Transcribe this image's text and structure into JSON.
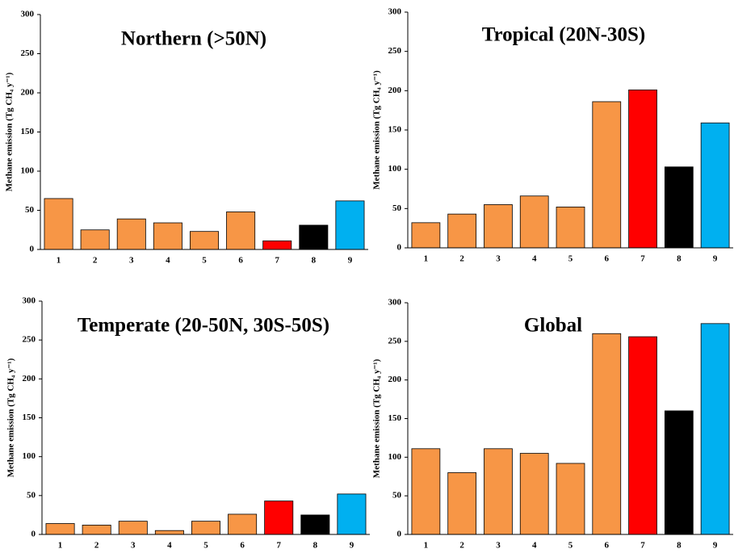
{
  "chart_data": [
    {
      "type": "bar",
      "title": "Northern (>50N)",
      "y_label": "Methane emission (Tg CH₄ y⁻¹)",
      "categories": [
        "1",
        "2",
        "3",
        "4",
        "5",
        "6",
        "7",
        "8",
        "9"
      ],
      "values": [
        65,
        25,
        39,
        34,
        23,
        48,
        11,
        31,
        62
      ],
      "colors": [
        "#f79646",
        "#f79646",
        "#f79646",
        "#f79646",
        "#f79646",
        "#f79646",
        "#ff0000",
        "#000000",
        "#00b0f0"
      ],
      "ylim": [
        0,
        300
      ],
      "yticks": [
        0,
        50,
        100,
        150,
        200,
        250,
        300
      ]
    },
    {
      "type": "bar",
      "title": "Tropical (20N-30S)",
      "y_label": "Methane emission (Tg CH₄ y⁻¹)",
      "categories": [
        "1",
        "2",
        "3",
        "4",
        "5",
        "6",
        "7",
        "8",
        "9"
      ],
      "values": [
        32,
        43,
        55,
        66,
        52,
        186,
        201,
        103,
        159
      ],
      "colors": [
        "#f79646",
        "#f79646",
        "#f79646",
        "#f79646",
        "#f79646",
        "#f79646",
        "#ff0000",
        "#000000",
        "#00b0f0"
      ],
      "ylim": [
        0,
        300
      ],
      "yticks": [
        0,
        50,
        100,
        150,
        200,
        250,
        300
      ]
    },
    {
      "type": "bar",
      "title": "Temperate (20-50N, 30S-50S)",
      "y_label": "Methane emission (Tg CH₄ y⁻¹)",
      "categories": [
        "1",
        "2",
        "3",
        "4",
        "5",
        "6",
        "7",
        "8",
        "9"
      ],
      "values": [
        14,
        12,
        17,
        5,
        17,
        26,
        43,
        25,
        52
      ],
      "colors": [
        "#f79646",
        "#f79646",
        "#f79646",
        "#f79646",
        "#f79646",
        "#f79646",
        "#ff0000",
        "#000000",
        "#00b0f0"
      ],
      "ylim": [
        0,
        300
      ],
      "yticks": [
        0,
        50,
        100,
        150,
        200,
        250,
        300
      ]
    },
    {
      "type": "bar",
      "title": "Global",
      "y_label": "Methane emission (Tg CH₄ y⁻¹)",
      "categories": [
        "1",
        "2",
        "3",
        "4",
        "5",
        "6",
        "7",
        "8",
        "9"
      ],
      "values": [
        111,
        80,
        111,
        105,
        92,
        260,
        256,
        160,
        273
      ],
      "colors": [
        "#f79646",
        "#f79646",
        "#f79646",
        "#f79646",
        "#f79646",
        "#f79646",
        "#ff0000",
        "#000000",
        "#00b0f0"
      ],
      "ylim": [
        0,
        300
      ],
      "yticks": [
        0,
        50,
        100,
        150,
        200,
        250,
        300
      ]
    }
  ]
}
